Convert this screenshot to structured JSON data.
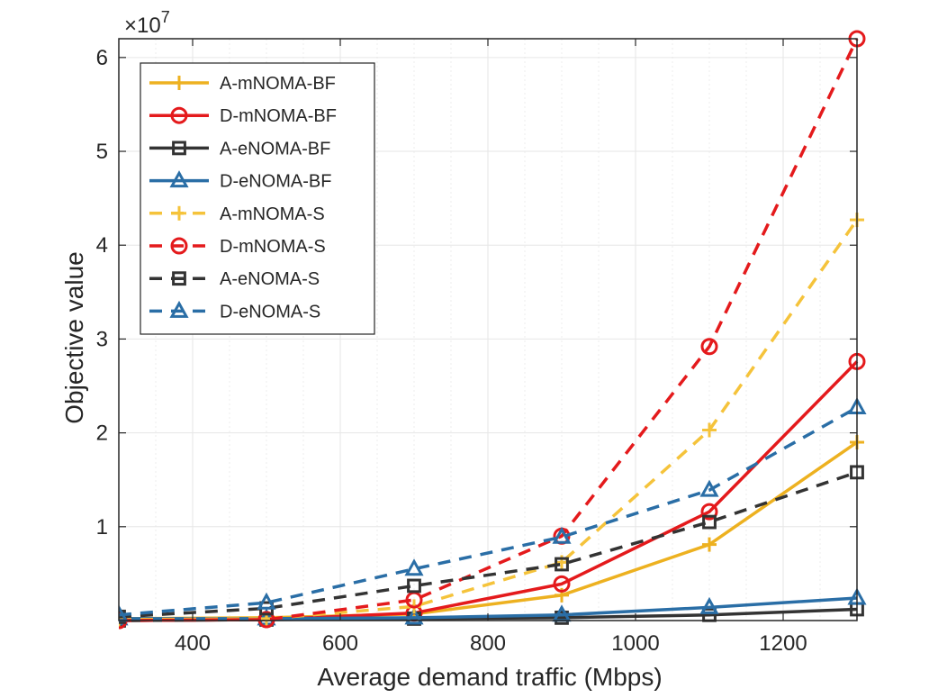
{
  "chart_data": {
    "type": "line",
    "title": "",
    "xlabel": "Average demand traffic (Mbps)",
    "ylabel": "Objective value",
    "exponent_label": "×10",
    "exponent_power": "7",
    "xlim": [
      300,
      1300
    ],
    "ylim": [
      0,
      6.2
    ],
    "xticks": [
      400,
      600,
      800,
      1000,
      1200
    ],
    "xtick_labels": [
      "400",
      "600",
      "800",
      "1000",
      "1200"
    ],
    "yticks": [
      1,
      2,
      3,
      4,
      5,
      6
    ],
    "ytick_labels": [
      "1",
      "2",
      "3",
      "4",
      "5",
      "6"
    ],
    "grid": true,
    "legend_position": "top-left",
    "x": [
      300,
      500,
      700,
      900,
      1100,
      1300
    ],
    "series": [
      {
        "name": "A-mNOMA-BF",
        "color": "#EDB120",
        "dash": "solid",
        "marker": "plus",
        "values": [
          0.02,
          0.03,
          0.07,
          0.27,
          0.81,
          1.9
        ]
      },
      {
        "name": "D-mNOMA-BF",
        "color": "#E41A1C",
        "dash": "solid",
        "marker": "circle",
        "values": [
          0.0,
          0.01,
          0.08,
          0.39,
          1.16,
          2.76
        ]
      },
      {
        "name": "A-eNOMA-BF",
        "color": "#333333",
        "dash": "solid",
        "marker": "square",
        "values": [
          0.0,
          0.01,
          0.02,
          0.03,
          0.06,
          0.12
        ]
      },
      {
        "name": "D-eNOMA-BF",
        "color": "#2A6EA6",
        "dash": "solid",
        "marker": "triangle",
        "values": [
          0.02,
          0.02,
          0.03,
          0.06,
          0.14,
          0.24
        ]
      },
      {
        "name": "A-mNOMA-S",
        "color": "#F5C33B",
        "dash": "dashed",
        "marker": "plus",
        "values": [
          0.01,
          0.02,
          0.15,
          0.62,
          2.03,
          4.27
        ]
      },
      {
        "name": "D-mNOMA-S",
        "color": "#E41A1C",
        "dash": "dashed",
        "marker": "circle",
        "values": [
          0.0,
          0.01,
          0.22,
          0.9,
          2.92,
          6.2
        ]
      },
      {
        "name": "A-eNOMA-S",
        "color": "#333333",
        "dash": "dashed",
        "marker": "square",
        "values": [
          0.04,
          0.13,
          0.37,
          0.6,
          1.05,
          1.58
        ]
      },
      {
        "name": "D-eNOMA-S",
        "color": "#2A6EA6",
        "dash": "dashed",
        "marker": "triangle",
        "values": [
          0.06,
          0.19,
          0.55,
          0.89,
          1.39,
          2.27
        ]
      }
    ]
  }
}
